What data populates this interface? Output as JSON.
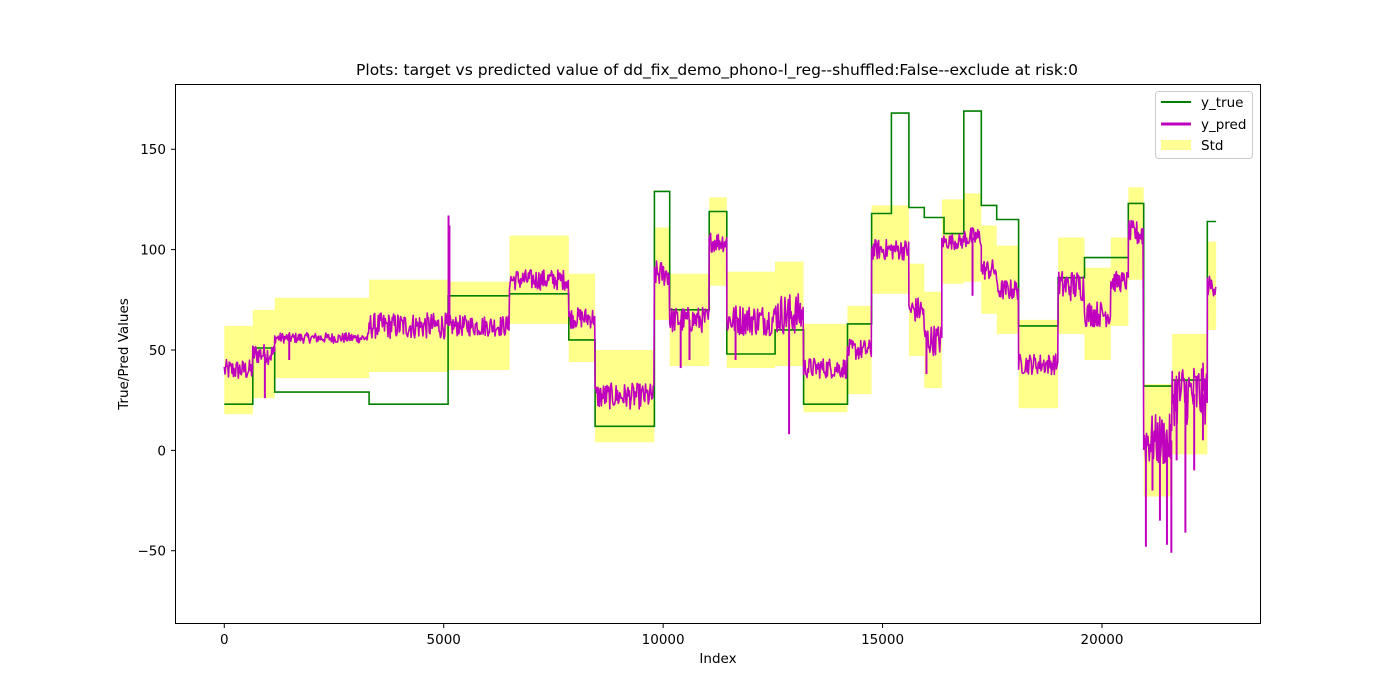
{
  "chart_data": {
    "type": "line",
    "title": "Plots: target vs predicted value of dd_fix_demo_phono-l_reg--shuffled:False--exclude at risk:0",
    "xlabel": "Index",
    "ylabel": "True/Pred Values",
    "xlim": [
      -1100,
      23600
    ],
    "ylim": [
      -86,
      182
    ],
    "xticks": [
      0,
      5000,
      10000,
      15000,
      20000
    ],
    "yticks": [
      -50,
      0,
      50,
      100,
      150
    ],
    "legend_position": "top-right",
    "grid": false,
    "series": [
      {
        "name": "y_true",
        "color": "#008000",
        "kind": "step",
        "segments": [
          {
            "x0": 0,
            "x1": 650,
            "y": 23
          },
          {
            "x0": 650,
            "x1": 1150,
            "y": 51
          },
          {
            "x0": 1150,
            "x1": 3300,
            "y": 29
          },
          {
            "x0": 3300,
            "x1": 5100,
            "y": 23
          },
          {
            "x0": 5100,
            "x1": 6500,
            "y": 77
          },
          {
            "x0": 6500,
            "x1": 7850,
            "y": 78
          },
          {
            "x0": 7850,
            "x1": 8450,
            "y": 55
          },
          {
            "x0": 8450,
            "x1": 9800,
            "y": 12
          },
          {
            "x0": 9800,
            "x1": 10150,
            "y": 129
          },
          {
            "x0": 10150,
            "x1": 11050,
            "y": 70
          },
          {
            "x0": 11050,
            "x1": 11450,
            "y": 119
          },
          {
            "x0": 11450,
            "x1": 12550,
            "y": 48
          },
          {
            "x0": 12550,
            "x1": 13200,
            "y": 60
          },
          {
            "x0": 13200,
            "x1": 14200,
            "y": 23
          },
          {
            "x0": 14200,
            "x1": 14750,
            "y": 63
          },
          {
            "x0": 14750,
            "x1": 15200,
            "y": 118
          },
          {
            "x0": 15200,
            "x1": 15600,
            "y": 168
          },
          {
            "x0": 15600,
            "x1": 15950,
            "y": 121
          },
          {
            "x0": 15950,
            "x1": 16400,
            "y": 116
          },
          {
            "x0": 16400,
            "x1": 16850,
            "y": 108
          },
          {
            "x0": 16850,
            "x1": 17250,
            "y": 169
          },
          {
            "x0": 17250,
            "x1": 17600,
            "y": 122
          },
          {
            "x0": 17600,
            "x1": 18100,
            "y": 115
          },
          {
            "x0": 18100,
            "x1": 19000,
            "y": 62
          },
          {
            "x0": 19000,
            "x1": 19600,
            "y": 86
          },
          {
            "x0": 19600,
            "x1": 20600,
            "y": 96
          },
          {
            "x0": 20600,
            "x1": 20950,
            "y": 123
          },
          {
            "x0": 20950,
            "x1": 21600,
            "y": 32
          },
          {
            "x0": 21600,
            "x1": 22400,
            "y": 35
          },
          {
            "x0": 22400,
            "x1": 22600,
            "y": 114
          }
        ]
      },
      {
        "name": "y_pred",
        "color": "#bf00bf",
        "kind": "noisy",
        "segments": [
          {
            "x0": 0,
            "x1": 650,
            "mean": 40,
            "noise": 4
          },
          {
            "x0": 650,
            "x1": 1150,
            "mean": 48,
            "noise": 4
          },
          {
            "x0": 1150,
            "x1": 3300,
            "mean": 56,
            "noise": 2
          },
          {
            "x0": 3300,
            "x1": 5100,
            "mean": 62,
            "noise": 5
          },
          {
            "x0": 5100,
            "x1": 6500,
            "mean": 62,
            "noise": 4
          },
          {
            "x0": 6500,
            "x1": 7850,
            "mean": 85,
            "noise": 4
          },
          {
            "x0": 7850,
            "x1": 8450,
            "mean": 66,
            "noise": 4
          },
          {
            "x0": 8450,
            "x1": 9800,
            "mean": 27,
            "noise": 5
          },
          {
            "x0": 9800,
            "x1": 10150,
            "mean": 88,
            "noise": 5
          },
          {
            "x0": 10150,
            "x1": 11050,
            "mean": 65,
            "noise": 5
          },
          {
            "x0": 11050,
            "x1": 11450,
            "mean": 104,
            "noise": 4
          },
          {
            "x0": 11450,
            "x1": 12550,
            "mean": 65,
            "noise": 6
          },
          {
            "x0": 12550,
            "x1": 13200,
            "mean": 68,
            "noise": 8
          },
          {
            "x0": 13200,
            "x1": 14200,
            "mean": 41,
            "noise": 4
          },
          {
            "x0": 14200,
            "x1": 14750,
            "mean": 50,
            "noise": 4
          },
          {
            "x0": 14750,
            "x1": 15600,
            "mean": 100,
            "noise": 4
          },
          {
            "x0": 15600,
            "x1": 15950,
            "mean": 70,
            "noise": 5
          },
          {
            "x0": 15950,
            "x1": 16350,
            "mean": 55,
            "noise": 6
          },
          {
            "x0": 16350,
            "x1": 16850,
            "mean": 104,
            "noise": 3
          },
          {
            "x0": 16850,
            "x1": 17250,
            "mean": 106,
            "noise": 4
          },
          {
            "x0": 17250,
            "x1": 17600,
            "mean": 90,
            "noise": 4
          },
          {
            "x0": 17600,
            "x1": 18100,
            "mean": 80,
            "noise": 4
          },
          {
            "x0": 18100,
            "x1": 19000,
            "mean": 43,
            "noise": 4
          },
          {
            "x0": 19000,
            "x1": 19600,
            "mean": 82,
            "noise": 6
          },
          {
            "x0": 19600,
            "x1": 20200,
            "mean": 68,
            "noise": 5
          },
          {
            "x0": 20200,
            "x1": 20600,
            "mean": 84,
            "noise": 4
          },
          {
            "x0": 20600,
            "x1": 20950,
            "mean": 108,
            "noise": 5
          },
          {
            "x0": 20950,
            "x1": 21600,
            "mean": 5,
            "noise": 10
          },
          {
            "x0": 21600,
            "x1": 22400,
            "mean": 28,
            "noise": 12
          },
          {
            "x0": 22400,
            "x1": 22600,
            "mean": 82,
            "noise": 4
          }
        ],
        "spikes": [
          {
            "x": 5110,
            "y": 117
          },
          {
            "x": 5130,
            "y": 112
          },
          {
            "x": 12870,
            "y": 8
          },
          {
            "x": 21000,
            "y": -48
          },
          {
            "x": 21150,
            "y": -20
          },
          {
            "x": 21320,
            "y": -35
          },
          {
            "x": 21480,
            "y": -47
          },
          {
            "x": 21580,
            "y": -51
          },
          {
            "x": 21700,
            "y": -5
          },
          {
            "x": 21900,
            "y": -41
          },
          {
            "x": 22100,
            "y": -10
          },
          {
            "x": 22300,
            "y": 5
          },
          {
            "x": 10400,
            "y": 41
          },
          {
            "x": 10600,
            "y": 45
          },
          {
            "x": 11650,
            "y": 45
          },
          {
            "x": 16000,
            "y": 38
          },
          {
            "x": 17050,
            "y": 77
          },
          {
            "x": 925,
            "y": 26
          },
          {
            "x": 1480,
            "y": 45
          }
        ]
      },
      {
        "name": "Std",
        "color": "#ffff66",
        "kind": "band",
        "halfwidth": 18
      }
    ]
  }
}
